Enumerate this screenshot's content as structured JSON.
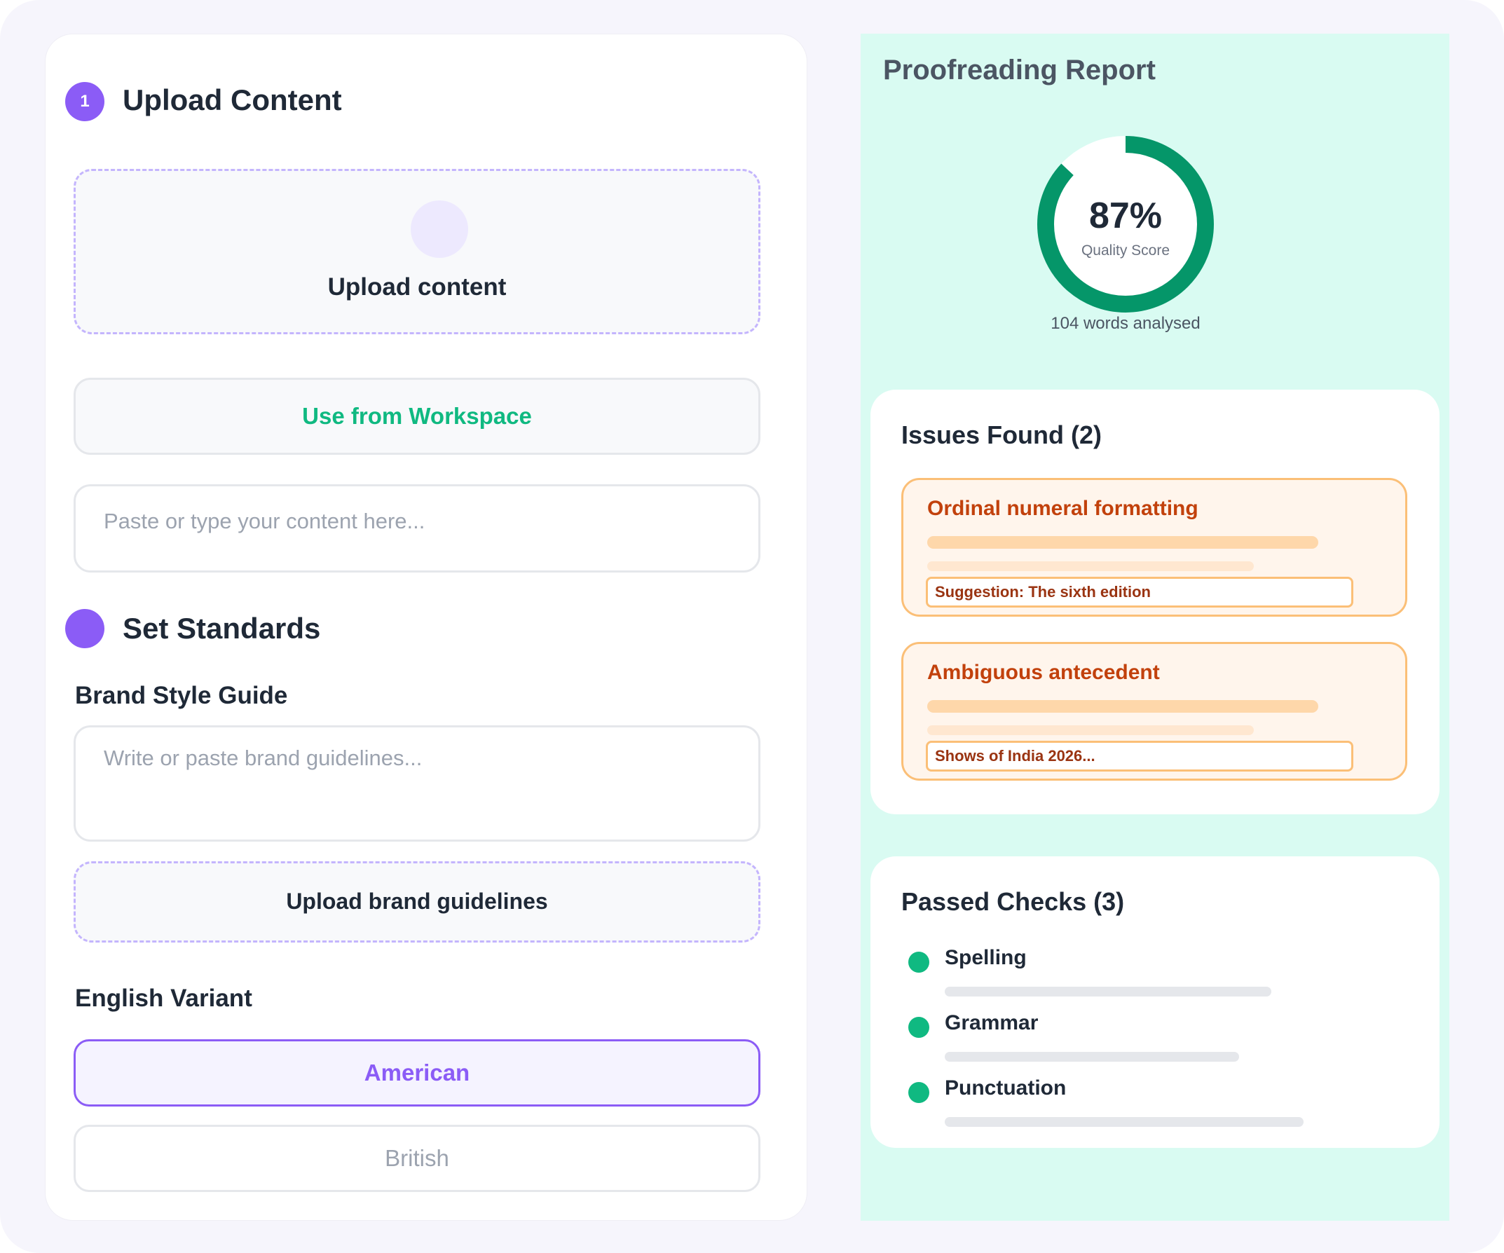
{
  "upload_section": {
    "step_number": "1",
    "title": "Upload Content",
    "dropzone_label": "Upload content",
    "workspace_button": "Use from Workspace",
    "content_placeholder": "Paste or type your content here..."
  },
  "standards_section": {
    "title": "Set Standards",
    "brand_style_guide": {
      "label": "Brand Style Guide",
      "placeholder": "Write or paste brand guidelines...",
      "upload_label": "Upload brand guidelines"
    },
    "english_variant": {
      "label": "English Variant",
      "options": [
        "American",
        "British"
      ],
      "selected": "American"
    }
  },
  "report": {
    "title": "Proofreading Report",
    "quality_score": 87,
    "quality_score_text": "87%",
    "quality_score_label": "Quality Score",
    "words_analysed": "104 words analysed",
    "issues": {
      "title": "Issues Found (2)",
      "items": [
        {
          "title": "Ordinal numeral formatting",
          "suggestion": "Suggestion: The sixth edition"
        },
        {
          "title": "Ambiguous antecedent",
          "suggestion": "Shows of India 2026..."
        }
      ]
    },
    "passed": {
      "title": "Passed Checks (3)",
      "items": [
        "Spelling",
        "Grammar",
        "Punctuation"
      ]
    }
  },
  "colors": {
    "accent": "#8b5cf6",
    "success": "#10b981",
    "warning": "#c2410c",
    "report_bg": "#d9fbf2"
  }
}
